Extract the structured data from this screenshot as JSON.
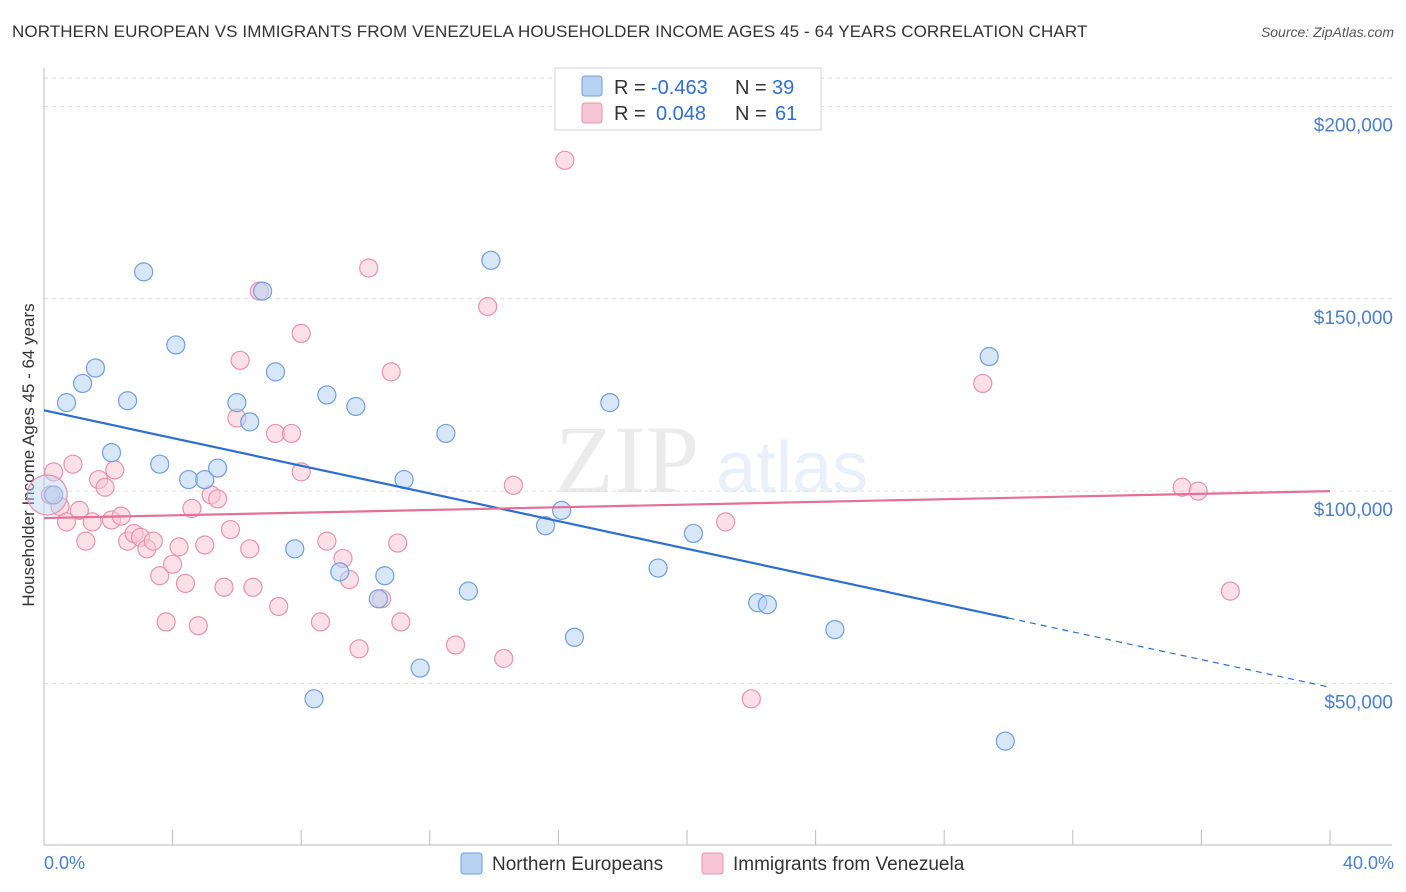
{
  "title": "NORTHERN EUROPEAN VS IMMIGRANTS FROM VENEZUELA HOUSEHOLDER INCOME AGES 45 - 64 YEARS CORRELATION CHART",
  "source": "Source: ZipAtlas.com",
  "watermark": {
    "zip": "ZIP",
    "atlas": "atlas"
  },
  "legend": {
    "r_label": "R =",
    "n_label": "N =",
    "rows": [
      {
        "r": "-0.463",
        "n": "39"
      },
      {
        "r": "0.048",
        "n": "61"
      }
    ]
  },
  "colors": {
    "blue_fill": "#b8d3f2",
    "blue_stroke": "#6f9fdc",
    "blue_line": "#2d6fd0",
    "pink_fill": "#f7c6d6",
    "pink_stroke": "#e892ad",
    "pink_line": "#e46f98"
  },
  "chart_data": {
    "type": "scatter",
    "title": "NORTHERN EUROPEAN VS IMMIGRANTS FROM VENEZUELA HOUSEHOLDER INCOME AGES 45 - 64 YEARS CORRELATION CHART",
    "xlabel": "",
    "ylabel": "Householder Income Ages 45 - 64 years",
    "xlim": [
      0,
      40
    ],
    "ylim": [
      8000,
      210000
    ],
    "x_tick_labels": [
      "0.0%",
      "40.0%"
    ],
    "y_ticks": [
      50000,
      100000,
      150000,
      200000
    ],
    "y_tick_labels": [
      "$50,000",
      "$100,000",
      "$150,000",
      "$200,000"
    ],
    "series": [
      {
        "name": "Northern Europeans",
        "color": "blue",
        "r": -0.463,
        "n": 39,
        "trend": {
          "x0": 0,
          "y0": 121000,
          "x1": 30,
          "y1": 67000,
          "dash_to_x": 40,
          "dash_to_y": 49000
        },
        "points": [
          [
            0.3,
            99000
          ],
          [
            0.7,
            123000
          ],
          [
            1.2,
            128000
          ],
          [
            1.6,
            132000
          ],
          [
            2.1,
            110000
          ],
          [
            2.6,
            123500
          ],
          [
            3.1,
            157000
          ],
          [
            3.6,
            107000
          ],
          [
            4.1,
            138000
          ],
          [
            4.5,
            103000
          ],
          [
            5.0,
            103000
          ],
          [
            5.4,
            106000
          ],
          [
            6.0,
            123000
          ],
          [
            6.4,
            118000
          ],
          [
            6.8,
            152000
          ],
          [
            7.2,
            131000
          ],
          [
            7.8,
            85000
          ],
          [
            8.4,
            46000
          ],
          [
            8.8,
            125000
          ],
          [
            9.2,
            79000
          ],
          [
            9.7,
            122000
          ],
          [
            10.4,
            72000
          ],
          [
            10.6,
            78000
          ],
          [
            11.2,
            103000
          ],
          [
            11.7,
            54000
          ],
          [
            12.5,
            115000
          ],
          [
            13.2,
            74000
          ],
          [
            13.9,
            160000
          ],
          [
            15.6,
            91000
          ],
          [
            16.5,
            62000
          ],
          [
            16.1,
            95000
          ],
          [
            17.6,
            123000
          ],
          [
            19.1,
            80000
          ],
          [
            20.2,
            89000
          ],
          [
            22.2,
            71000
          ],
          [
            22.5,
            70500
          ],
          [
            24.6,
            64000
          ],
          [
            29.4,
            135000
          ],
          [
            29.9,
            35000
          ]
        ]
      },
      {
        "name": "Immigrants from Venezuela",
        "color": "pink",
        "r": 0.048,
        "n": 61,
        "trend": {
          "x0": 0,
          "y0": 93000,
          "x1": 40,
          "y1": 100000
        },
        "points": [
          [
            0.3,
            105000
          ],
          [
            0.5,
            96000
          ],
          [
            0.7,
            92000
          ],
          [
            0.9,
            107000
          ],
          [
            1.1,
            95000
          ],
          [
            1.3,
            87000
          ],
          [
            1.5,
            92000
          ],
          [
            1.7,
            103000
          ],
          [
            1.9,
            101000
          ],
          [
            2.1,
            92500
          ],
          [
            2.2,
            105500
          ],
          [
            2.4,
            93500
          ],
          [
            2.6,
            87000
          ],
          [
            2.8,
            89000
          ],
          [
            3.0,
            88000
          ],
          [
            3.2,
            85000
          ],
          [
            3.4,
            87000
          ],
          [
            3.6,
            78000
          ],
          [
            3.8,
            66000
          ],
          [
            4.0,
            81000
          ],
          [
            4.2,
            85500
          ],
          [
            4.4,
            76000
          ],
          [
            4.6,
            95500
          ],
          [
            4.8,
            65000
          ],
          [
            5.0,
            86000
          ],
          [
            5.2,
            99000
          ],
          [
            5.4,
            98000
          ],
          [
            5.6,
            75000
          ],
          [
            5.8,
            90000
          ],
          [
            6.0,
            119000
          ],
          [
            6.1,
            134000
          ],
          [
            6.4,
            85000
          ],
          [
            6.5,
            75000
          ],
          [
            6.7,
            152000
          ],
          [
            7.2,
            115000
          ],
          [
            7.3,
            70000
          ],
          [
            7.7,
            115000
          ],
          [
            8.0,
            141000
          ],
          [
            8.0,
            105000
          ],
          [
            8.6,
            66000
          ],
          [
            8.8,
            87000
          ],
          [
            9.3,
            82500
          ],
          [
            9.5,
            77000
          ],
          [
            9.8,
            59000
          ],
          [
            10.1,
            158000
          ],
          [
            10.5,
            72000
          ],
          [
            10.8,
            131000
          ],
          [
            11.0,
            86500
          ],
          [
            11.1,
            66000
          ],
          [
            12.8,
            60000
          ],
          [
            13.8,
            148000
          ],
          [
            14.3,
            56500
          ],
          [
            14.6,
            101500
          ],
          [
            16.2,
            186000
          ],
          [
            21.2,
            92000
          ],
          [
            22.0,
            46000
          ],
          [
            29.2,
            128000
          ],
          [
            35.4,
            101000
          ],
          [
            35.9,
            100000
          ],
          [
            36.9,
            74000
          ],
          [
            0.2,
            99000
          ]
        ]
      }
    ]
  },
  "bottom_legend": [
    "Northern Europeans",
    "Immigrants from Venezuela"
  ]
}
